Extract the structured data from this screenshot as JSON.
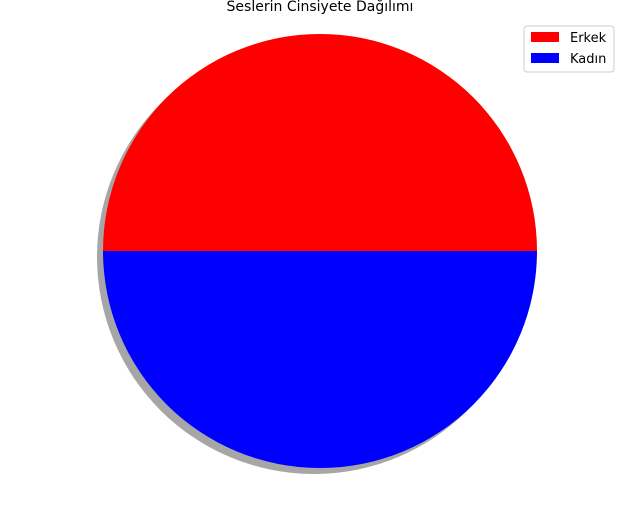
{
  "chart_data": {
    "type": "pie",
    "title": "Seslerin Cinsiyete Dağılımı",
    "slices": [
      {
        "label": "Erkek",
        "value": 50,
        "color": "#ff0000"
      },
      {
        "label": "Kadın",
        "value": 50,
        "color": "#0000ff"
      }
    ],
    "start_angle_deg": 0,
    "shadow": true,
    "legend": {
      "position": "top-right"
    }
  }
}
